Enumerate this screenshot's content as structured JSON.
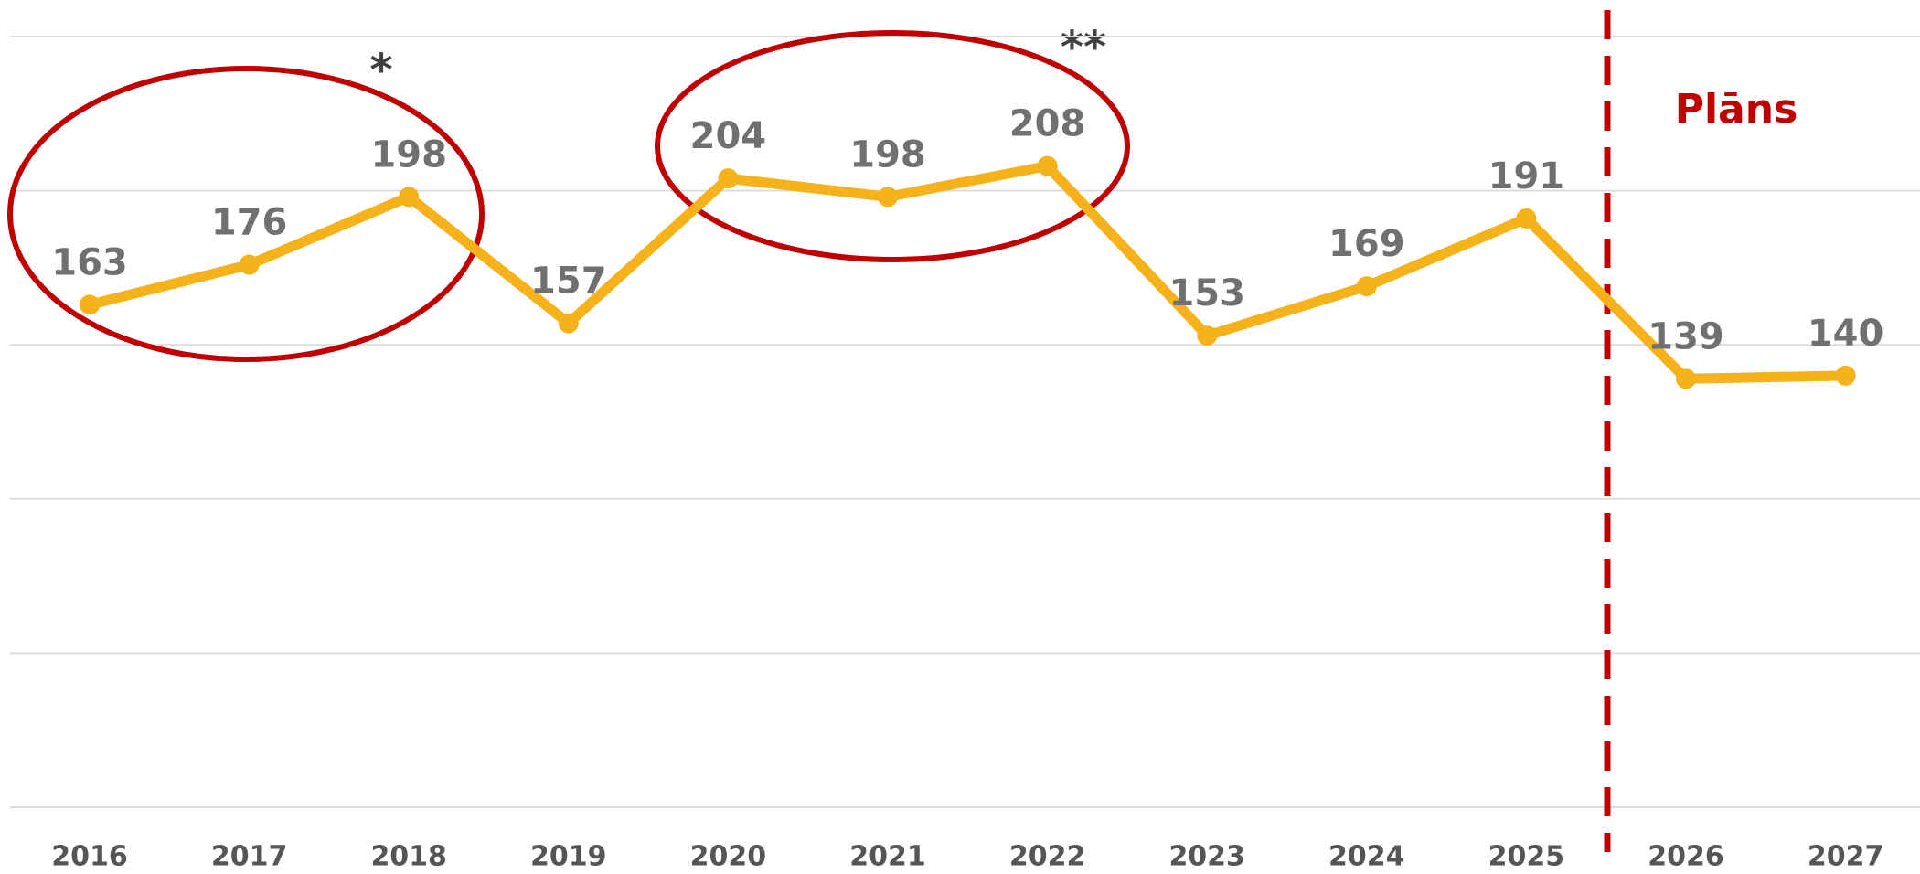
{
  "chart_data": {
    "type": "line",
    "categories": [
      "2016",
      "2017",
      "2018",
      "2019",
      "2020",
      "2021",
      "2022",
      "2023",
      "2024",
      "2025",
      "2026",
      "2027"
    ],
    "series": [
      {
        "color": "#f5b21b",
        "values": [
          163,
          176,
          198,
          157,
          204,
          198,
          208,
          153,
          169,
          191,
          139,
          140
        ]
      }
    ],
    "ylim": [
      0,
      250
    ],
    "yticks": [
      0,
      50,
      100,
      150,
      200,
      250
    ],
    "grid": true,
    "annotations": [
      "*",
      "**"
    ],
    "plan_label": "Plāns",
    "annotation_color": "#c00000"
  }
}
